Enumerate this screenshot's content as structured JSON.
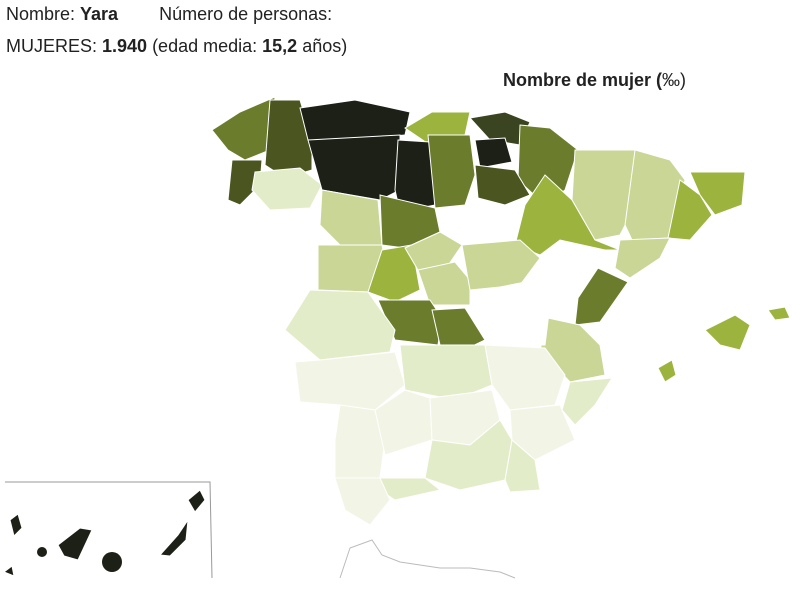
{
  "header": {
    "name_label": "Nombre: ",
    "name": "Yara",
    "count_label": "Número de personas:",
    "women_label": "MUJERES: ",
    "women_count": "1.940",
    "age_label": " (edad media: ",
    "age": "15,2",
    "age_unit": " años)"
  },
  "map": {
    "title": "Nombre de mujer (",
    "unit": "‰",
    "title_end": ")"
  }
}
